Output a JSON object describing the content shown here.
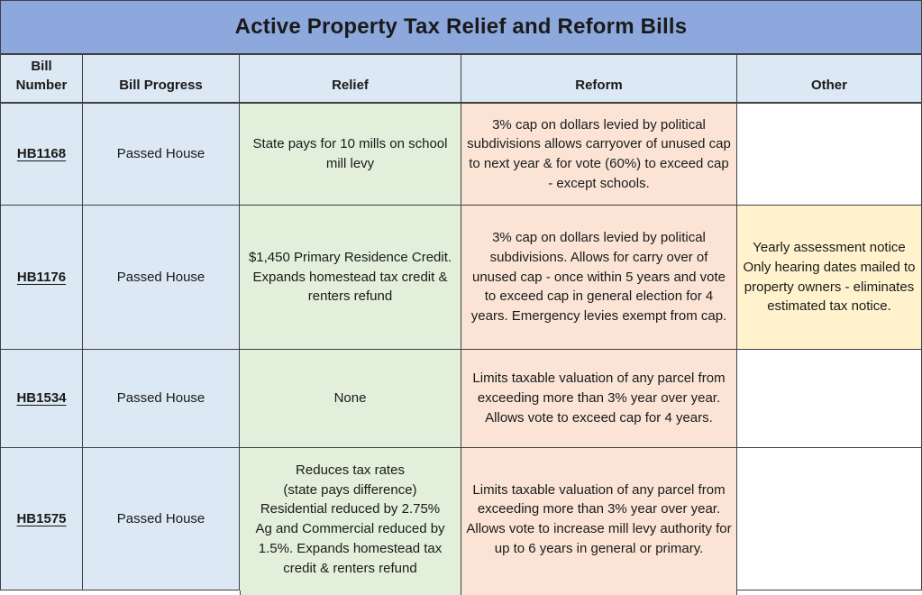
{
  "title": "Active Property Tax Relief and Reform Bills",
  "colors": {
    "title_bg": "#8DA8DC",
    "header_bg": "#DCE8F4",
    "blue_cell_bg": "#DCE8F4",
    "relief_bg": "#E2EFDA",
    "reform_bg": "#FBE4D5",
    "other_highlight_bg": "#FFF2CC",
    "border": "#404040",
    "text": "#1A1A1A"
  },
  "table": {
    "columns": {
      "bill_number": "Bill\nNumber",
      "bill_progress": "Bill Progress",
      "relief": "Relief",
      "reform": "Reform",
      "other": "Other"
    },
    "rows": [
      {
        "bill_number": "HB1168",
        "bill_progress": "Passed House",
        "relief": "State pays for 10 mills on school mill levy",
        "reform": "3% cap on dollars levied by political subdivisions allows carryover of unused cap to next year & for vote (60%) to exceed cap - except schools.",
        "other": ""
      },
      {
        "bill_number": "HB1176",
        "bill_progress": "Passed House",
        "relief": "$1,450 Primary Residence Credit. Expands homestead tax credit & renters refund",
        "reform": "3% cap on dollars levied by political subdivisions. Allows for carry over of unused cap - once within 5 years and vote to exceed cap in general election for 4 years. Emergency levies exempt from cap.",
        "other": "Yearly assessment notice\nOnly hearing dates mailed to property owners - eliminates estimated tax notice."
      },
      {
        "bill_number": "HB1534",
        "bill_progress": "Passed House",
        "relief": "None",
        "reform": "Limits taxable valuation of any parcel from exceeding more than 3% year over year. Allows vote to exceed cap for 4 years.",
        "other": ""
      },
      {
        "bill_number": "HB1575",
        "bill_progress": "Passed House",
        "relief": "Reduces tax rates\n(state pays difference)\nResidential reduced by 2.75%\nAg and Commercial reduced by 1.5%. Expands homestead tax credit & renters refund",
        "reform": "Limits taxable valuation of any parcel from exceeding more than 3% year over year. Allows vote to increase mill levy authority for up to 6 years in general or primary.",
        "other": ""
      }
    ]
  }
}
